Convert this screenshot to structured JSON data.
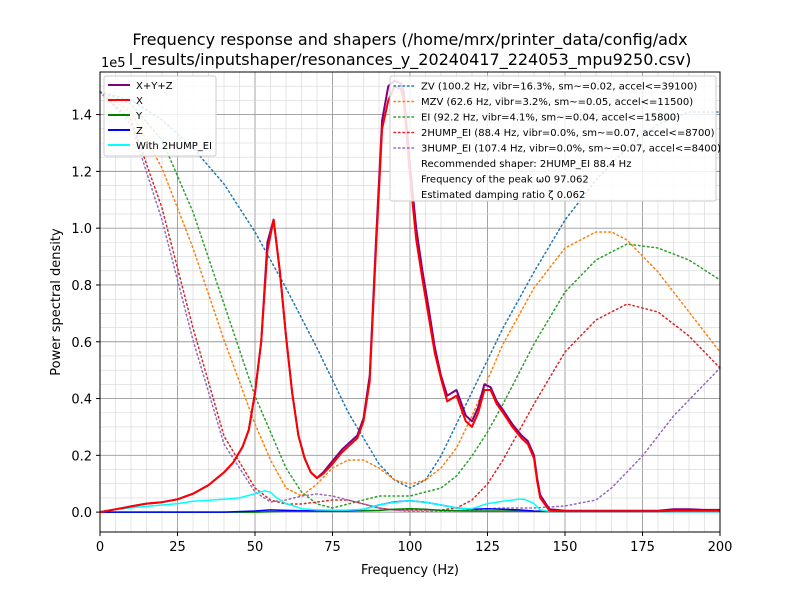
{
  "chart_data": {
    "type": "line",
    "title_line1": "Frequency response and shapers (/home/mrx/printer_data/config/adx",
    "title_line2": "l_results/inputshaper/resonances_y_20240417_224053_mpu9250.csv)",
    "xlabel": "Frequency (Hz)",
    "ylabel": "Power spectral density",
    "y_exponent_label": "1e5",
    "xlim": [
      0,
      200
    ],
    "ylim": [
      -0.07,
      1.55
    ],
    "ylim2": [
      -0.05,
      1.1
    ],
    "x_ticks": [
      0,
      25,
      50,
      75,
      100,
      125,
      150,
      175,
      200
    ],
    "x_tick_labels": [
      "0",
      "25",
      "50",
      "75",
      "100",
      "125",
      "150",
      "175",
      "200"
    ],
    "y_ticks": [
      0.0,
      0.2,
      0.4,
      0.6,
      0.8,
      1.0,
      1.2,
      1.4
    ],
    "y_tick_labels": [
      "0.0",
      "0.2",
      "0.4",
      "0.6",
      "0.8",
      "1.0",
      "1.2",
      "1.4"
    ],
    "grid": true,
    "legend_left": [
      {
        "name": "X+Y+Z",
        "color": "#800080"
      },
      {
        "name": "X",
        "color": "#ff0000"
      },
      {
        "name": "Y",
        "color": "#008000"
      },
      {
        "name": "Z",
        "color": "#0000ff"
      },
      {
        "name": "With 2HUMP_EI",
        "color": "#00ffff"
      }
    ],
    "legend_right": [
      {
        "name": "ZV (100.2 Hz, vibr=16.3%, sm~=0.02, accel<=39100)",
        "color": "#1f77b4",
        "dotted": true
      },
      {
        "name": "MZV (62.6 Hz, vibr=3.2%, sm~=0.05, accel<=11500)",
        "color": "#ff7f0e",
        "dotted": true
      },
      {
        "name": "EI (92.2 Hz, vibr=4.1%, sm~=0.04, accel<=15800)",
        "color": "#2ca02c",
        "dotted": true
      },
      {
        "name": "2HUMP_EI (88.4 Hz, vibr=0.0%, sm~=0.07, accel<=8700)",
        "color": "#d62728",
        "dotted": true
      },
      {
        "name": "3HUMP_EI (107.4 Hz, vibr=0.0%, sm~=0.07, accel<=8400)",
        "color": "#9467bd",
        "dotted": true
      },
      {
        "name": "Recommended shaper: 2HUMP_EI 88.4 Hz",
        "color": "",
        "dotted": false
      },
      {
        "name": "Frequency of the peak ω0 97.062",
        "color": "",
        "dotted": false
      },
      {
        "name": "Estimated damping ratio ζ 0.062",
        "color": "",
        "dotted": false
      }
    ],
    "series": [
      {
        "name": "X+Y+Z",
        "color": "#800080",
        "width": 2,
        "axis": "left",
        "x": [
          0,
          5,
          10,
          15,
          20,
          25,
          30,
          35,
          40,
          43,
          46,
          48,
          50,
          52,
          54,
          56,
          58,
          60,
          62,
          64,
          66,
          68,
          70,
          72,
          75,
          78,
          80,
          83,
          85,
          87,
          89,
          91,
          93,
          95,
          97,
          98,
          100,
          102,
          104,
          106,
          108,
          110,
          112,
          115,
          118,
          120,
          122,
          124,
          126,
          128,
          130,
          133,
          136,
          138,
          140,
          141,
          142,
          145,
          150,
          160,
          170,
          180,
          185,
          190,
          195,
          200
        ],
        "y": [
          0,
          0.01,
          0.02,
          0.03,
          0.035,
          0.045,
          0.065,
          0.095,
          0.14,
          0.175,
          0.23,
          0.29,
          0.42,
          0.6,
          0.95,
          1.03,
          0.85,
          0.62,
          0.42,
          0.27,
          0.19,
          0.14,
          0.12,
          0.14,
          0.18,
          0.22,
          0.24,
          0.27,
          0.33,
          0.48,
          0.95,
          1.38,
          1.5,
          1.52,
          1.51,
          1.48,
          1.22,
          1.0,
          0.85,
          0.72,
          0.58,
          0.48,
          0.41,
          0.43,
          0.34,
          0.32,
          0.37,
          0.45,
          0.44,
          0.39,
          0.36,
          0.31,
          0.27,
          0.25,
          0.2,
          0.12,
          0.06,
          0.01,
          0.005,
          0.005,
          0.005,
          0.005,
          0.01,
          0.01,
          0.008,
          0.008
        ]
      },
      {
        "name": "X",
        "color": "#ff0000",
        "width": 2,
        "axis": "left",
        "x": [
          0,
          5,
          10,
          15,
          20,
          25,
          30,
          35,
          40,
          43,
          46,
          48,
          50,
          52,
          54,
          56,
          58,
          60,
          62,
          64,
          66,
          68,
          70,
          72,
          75,
          78,
          80,
          83,
          85,
          87,
          89,
          91,
          93,
          95,
          97,
          98,
          100,
          102,
          104,
          106,
          108,
          110,
          112,
          115,
          118,
          120,
          122,
          124,
          126,
          128,
          130,
          133,
          136,
          138,
          140,
          141,
          142,
          145,
          150,
          160,
          170,
          180,
          185,
          190,
          195,
          200
        ],
        "y": [
          0,
          0.01,
          0.02,
          0.03,
          0.035,
          0.045,
          0.065,
          0.095,
          0.14,
          0.175,
          0.23,
          0.29,
          0.42,
          0.6,
          0.92,
          1.03,
          0.85,
          0.62,
          0.42,
          0.27,
          0.19,
          0.14,
          0.12,
          0.135,
          0.17,
          0.21,
          0.23,
          0.26,
          0.32,
          0.46,
          0.92,
          1.35,
          1.45,
          1.5,
          1.49,
          1.45,
          1.18,
          0.96,
          0.82,
          0.69,
          0.56,
          0.47,
          0.39,
          0.41,
          0.32,
          0.3,
          0.35,
          0.43,
          0.43,
          0.38,
          0.35,
          0.3,
          0.26,
          0.24,
          0.19,
          0.11,
          0.05,
          0.005,
          0.003,
          0.003,
          0.003,
          0.003,
          0.005,
          0.005,
          0.005,
          0.005
        ]
      },
      {
        "name": "Y",
        "color": "#008000",
        "width": 1.5,
        "axis": "left",
        "x": [
          0,
          50,
          60,
          70,
          80,
          90,
          95,
          100,
          105,
          110,
          120,
          130,
          140,
          150,
          200
        ],
        "y": [
          0,
          0.0,
          0.003,
          0.004,
          0.004,
          0.006,
          0.01,
          0.012,
          0.01,
          0.006,
          0.004,
          0.004,
          0.003,
          0.002,
          0.002
        ]
      },
      {
        "name": "Z",
        "color": "#0000ff",
        "width": 1.5,
        "axis": "left",
        "x": [
          0,
          40,
          50,
          55,
          60,
          70,
          80,
          85,
          90,
          95,
          100,
          105,
          110,
          115,
          120,
          125,
          130,
          135,
          140,
          145,
          150,
          200
        ],
        "y": [
          0,
          0.0,
          0.004,
          0.008,
          0.006,
          0.004,
          0.004,
          0.01,
          0.025,
          0.036,
          0.04,
          0.035,
          0.025,
          0.015,
          0.01,
          0.012,
          0.01,
          0.008,
          0.004,
          0.003,
          0.002,
          0.002
        ]
      },
      {
        "name": "With 2HUMP_EI",
        "color": "#00ffff",
        "width": 1.5,
        "axis": "left",
        "x": [
          0,
          5,
          10,
          15,
          20,
          25,
          30,
          35,
          40,
          45,
          50,
          53,
          55,
          57,
          60,
          63,
          65,
          70,
          75,
          80,
          85,
          90,
          95,
          100,
          105,
          110,
          115,
          120,
          125,
          130,
          135,
          137,
          140,
          142,
          145,
          150,
          200
        ],
        "y": [
          0,
          0.01,
          0.015,
          0.02,
          0.025,
          0.03,
          0.038,
          0.042,
          0.045,
          0.05,
          0.065,
          0.075,
          0.07,
          0.05,
          0.03,
          0.02,
          0.012,
          0.008,
          0.007,
          0.007,
          0.01,
          0.025,
          0.035,
          0.04,
          0.035,
          0.025,
          0.015,
          0.012,
          0.03,
          0.038,
          0.045,
          0.045,
          0.03,
          0.008,
          0.003,
          0.002,
          0.002
        ]
      },
      {
        "name": "ZV",
        "color": "#1f77b4",
        "width": 1.5,
        "dotted": true,
        "axis": "right",
        "x": [
          0,
          10,
          20,
          30,
          40,
          50,
          60,
          70,
          80,
          90,
          95,
          100,
          105,
          110,
          120,
          130,
          140,
          150,
          160,
          170,
          180,
          190,
          200
        ],
        "y": [
          1.05,
          1.03,
          0.98,
          0.91,
          0.82,
          0.7,
          0.56,
          0.41,
          0.25,
          0.12,
          0.08,
          0.06,
          0.08,
          0.14,
          0.3,
          0.46,
          0.6,
          0.73,
          0.83,
          0.91,
          0.97,
          1.0,
          1.0
        ]
      },
      {
        "name": "MZV",
        "color": "#ff7f0e",
        "width": 1.5,
        "dotted": true,
        "axis": "right",
        "x": [
          0,
          10,
          20,
          30,
          40,
          50,
          55,
          60,
          65,
          70,
          75,
          80,
          85,
          90,
          95,
          100,
          105,
          110,
          115,
          120,
          125,
          130,
          140,
          150,
          160,
          165,
          170,
          180,
          190,
          200
        ],
        "y": [
          1.05,
          1.0,
          0.86,
          0.66,
          0.43,
          0.22,
          0.13,
          0.06,
          0.04,
          0.07,
          0.11,
          0.13,
          0.13,
          0.11,
          0.08,
          0.07,
          0.08,
          0.11,
          0.16,
          0.24,
          0.33,
          0.42,
          0.56,
          0.66,
          0.7,
          0.7,
          0.68,
          0.6,
          0.5,
          0.4
        ]
      },
      {
        "name": "EI",
        "color": "#2ca02c",
        "width": 1.5,
        "dotted": true,
        "axis": "right",
        "x": [
          0,
          10,
          20,
          30,
          40,
          50,
          60,
          65,
          70,
          75,
          80,
          85,
          90,
          95,
          100,
          105,
          110,
          115,
          120,
          125,
          130,
          140,
          150,
          160,
          170,
          180,
          190,
          200
        ],
        "y": [
          1.05,
          1.02,
          0.93,
          0.75,
          0.52,
          0.29,
          0.11,
          0.05,
          0.02,
          0.01,
          0.02,
          0.03,
          0.04,
          0.04,
          0.04,
          0.05,
          0.06,
          0.09,
          0.14,
          0.2,
          0.27,
          0.42,
          0.55,
          0.63,
          0.67,
          0.66,
          0.63,
          0.58
        ]
      },
      {
        "name": "2HUMP_EI",
        "color": "#d62728",
        "width": 1.5,
        "dotted": true,
        "axis": "right",
        "x": [
          0,
          10,
          20,
          30,
          40,
          50,
          55,
          60,
          65,
          70,
          75,
          80,
          85,
          90,
          95,
          100,
          105,
          110,
          115,
          120,
          125,
          130,
          140,
          150,
          160,
          170,
          180,
          190,
          200
        ],
        "y": [
          1.05,
          0.98,
          0.76,
          0.46,
          0.19,
          0.06,
          0.03,
          0.02,
          0.02,
          0.025,
          0.03,
          0.03,
          0.02,
          0.01,
          0.005,
          0.005,
          0.005,
          0.005,
          0.01,
          0.03,
          0.07,
          0.13,
          0.27,
          0.4,
          0.48,
          0.52,
          0.5,
          0.44,
          0.36
        ]
      },
      {
        "name": "3HUMP_EI",
        "color": "#9467bd",
        "width": 1.5,
        "dotted": true,
        "axis": "right",
        "x": [
          0,
          10,
          20,
          30,
          40,
          50,
          55,
          60,
          65,
          70,
          75,
          80,
          85,
          90,
          95,
          100,
          105,
          110,
          115,
          120,
          125,
          130,
          140,
          150,
          160,
          165,
          170,
          175,
          180,
          185,
          190,
          195,
          200
        ],
        "y": [
          1.05,
          0.97,
          0.73,
          0.43,
          0.17,
          0.05,
          0.025,
          0.03,
          0.04,
          0.045,
          0.04,
          0.03,
          0.02,
          0.01,
          0.005,
          0.002,
          0.002,
          0.002,
          0.003,
          0.005,
          0.008,
          0.01,
          0.01,
          0.015,
          0.03,
          0.06,
          0.1,
          0.14,
          0.19,
          0.24,
          0.28,
          0.32,
          0.36
        ]
      }
    ]
  }
}
